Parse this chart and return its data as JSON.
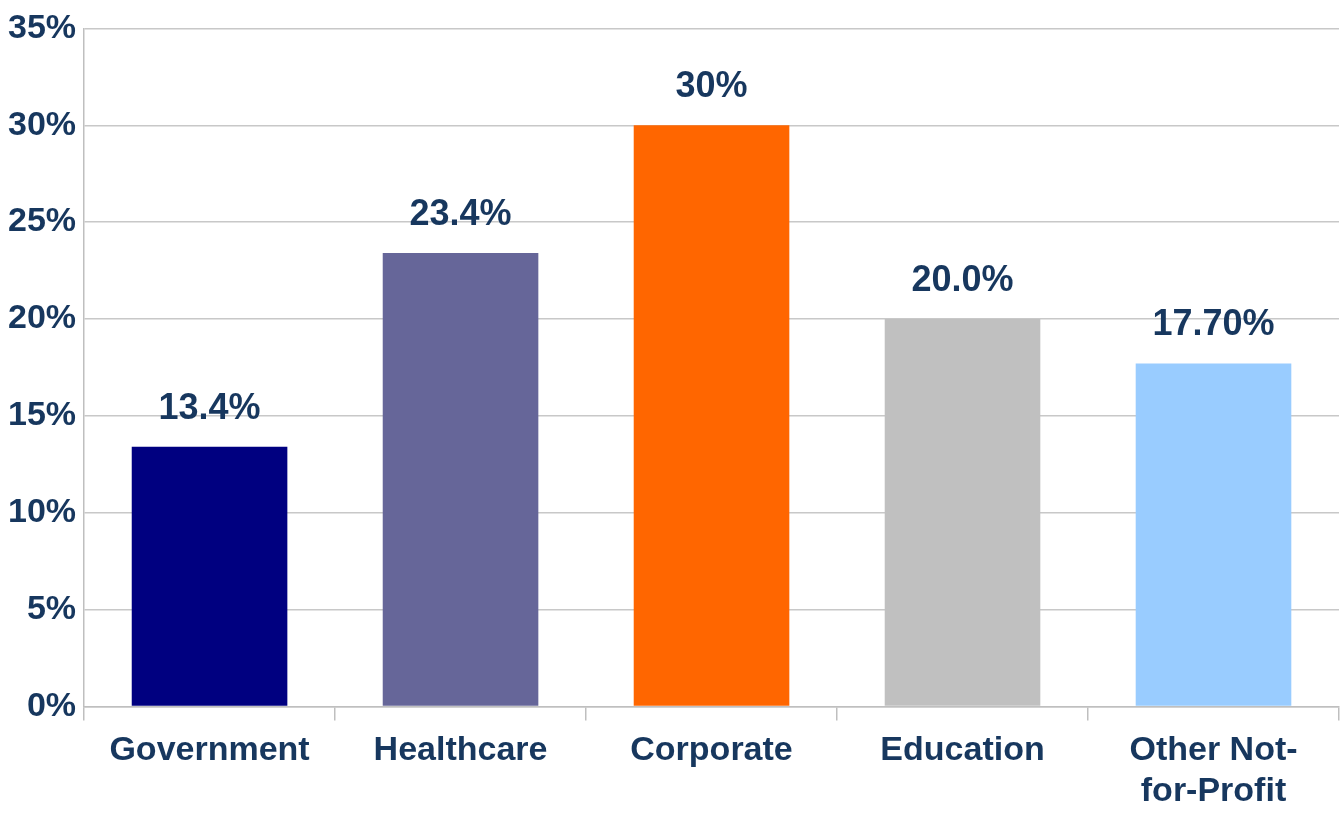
{
  "chart_data": {
    "type": "bar",
    "categories": [
      "Government",
      "Healthcare",
      "Corporate",
      "Education",
      "Other Not-for-Profit"
    ],
    "values": [
      13.4,
      23.4,
      30,
      20.0,
      17.7
    ],
    "colors": [
      "#000080",
      "#666699",
      "#ff6600",
      "#c0c0c0",
      "#99ccff"
    ],
    "value_labels": [
      "13.4%",
      "23.4%",
      "30%",
      "20.0%",
      "17.70%"
    ],
    "ylim": [
      0,
      35
    ],
    "yticks": [
      {
        "value": 0,
        "label": "0%"
      },
      {
        "value": 5,
        "label": "5%"
      },
      {
        "value": 10,
        "label": "10%"
      },
      {
        "value": 15,
        "label": "15%"
      },
      {
        "value": 20,
        "label": "20%"
      },
      {
        "value": 25,
        "label": "25%"
      },
      {
        "value": 30,
        "label": "30%"
      },
      {
        "value": 35,
        "label": "35%"
      }
    ],
    "grid": "y",
    "legend": false
  }
}
